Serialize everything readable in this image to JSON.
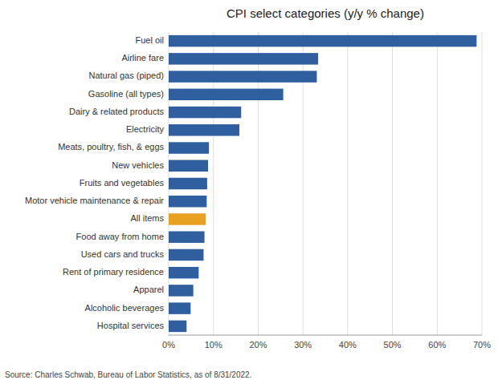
{
  "chart_data": {
    "type": "bar",
    "orientation": "horizontal",
    "title": "CPI select categories (y/y % change)",
    "categories": [
      "Fuel oil",
      "Airline fare",
      "Natural gas (piped)",
      "Gasoline (all types)",
      "Dairy & related products",
      "Electricity",
      "Meats, poultry, fish, & eggs",
      "New vehicles",
      "Fruits and vegetables",
      "Motor vehicle maintenance & repair",
      "All items",
      "Food away from home",
      "Used cars and trucks",
      "Rent of primary residence",
      "Apparel",
      "Alcoholic beverages",
      "Hospital services"
    ],
    "values": [
      68.8,
      33.4,
      33.1,
      25.6,
      16.2,
      15.8,
      9.0,
      8.8,
      8.6,
      8.5,
      8.3,
      8.0,
      7.8,
      6.7,
      5.5,
      4.9,
      4.0
    ],
    "colors": [
      "#2F5F9E",
      "#2F5F9E",
      "#2F5F9E",
      "#2F5F9E",
      "#2F5F9E",
      "#2F5F9E",
      "#2F5F9E",
      "#2F5F9E",
      "#2F5F9E",
      "#2F5F9E",
      "#E8A020",
      "#2F5F9E",
      "#2F5F9E",
      "#2F5F9E",
      "#2F5F9E",
      "#2F5F9E",
      "#2F5F9E"
    ],
    "xlim": [
      0,
      70
    ],
    "xticks": [
      {
        "value": 0,
        "label": "0%"
      },
      {
        "value": 10,
        "label": "10%"
      },
      {
        "value": 20,
        "label": "20%"
      },
      {
        "value": 30,
        "label": "30%"
      },
      {
        "value": 40,
        "label": "40%"
      },
      {
        "value": 50,
        "label": "50%"
      },
      {
        "value": 60,
        "label": "60%"
      },
      {
        "value": 70,
        "label": "70%"
      }
    ],
    "grid": true,
    "annotations": [
      "Source: Charles Schwab, Bureau of Labor Statistics, as of 8/31/2022."
    ]
  }
}
